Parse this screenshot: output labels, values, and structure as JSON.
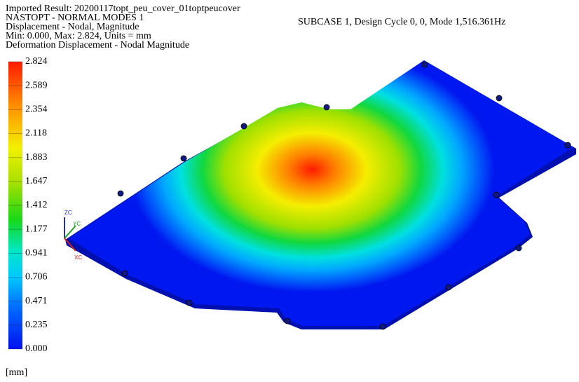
{
  "header": {
    "lines": [
      "Imported Result: 20200117topt_peu_cover_01toptpeucover",
      "NASTOPT - NORMAL MODES 1",
      "Displacement - Nodal, Magnitude",
      "Min: 0.000, Max: 2.824, Units = mm",
      "Deformation Displacement - Nodal Magnitude"
    ],
    "subcase": "SUBCASE 1, Design Cycle 0, 0, Mode 1,516.361Hz"
  },
  "legend": {
    "labels": [
      "2.824",
      "2.589",
      "2.354",
      "2.118",
      "1.883",
      "1.647",
      "1.412",
      "1.177",
      "0.941",
      "0.706",
      "0.471",
      "0.235",
      "0.000"
    ],
    "unit": "[mm]"
  },
  "triad": {
    "z": "ZC",
    "y": "YC",
    "x": "XC"
  }
}
